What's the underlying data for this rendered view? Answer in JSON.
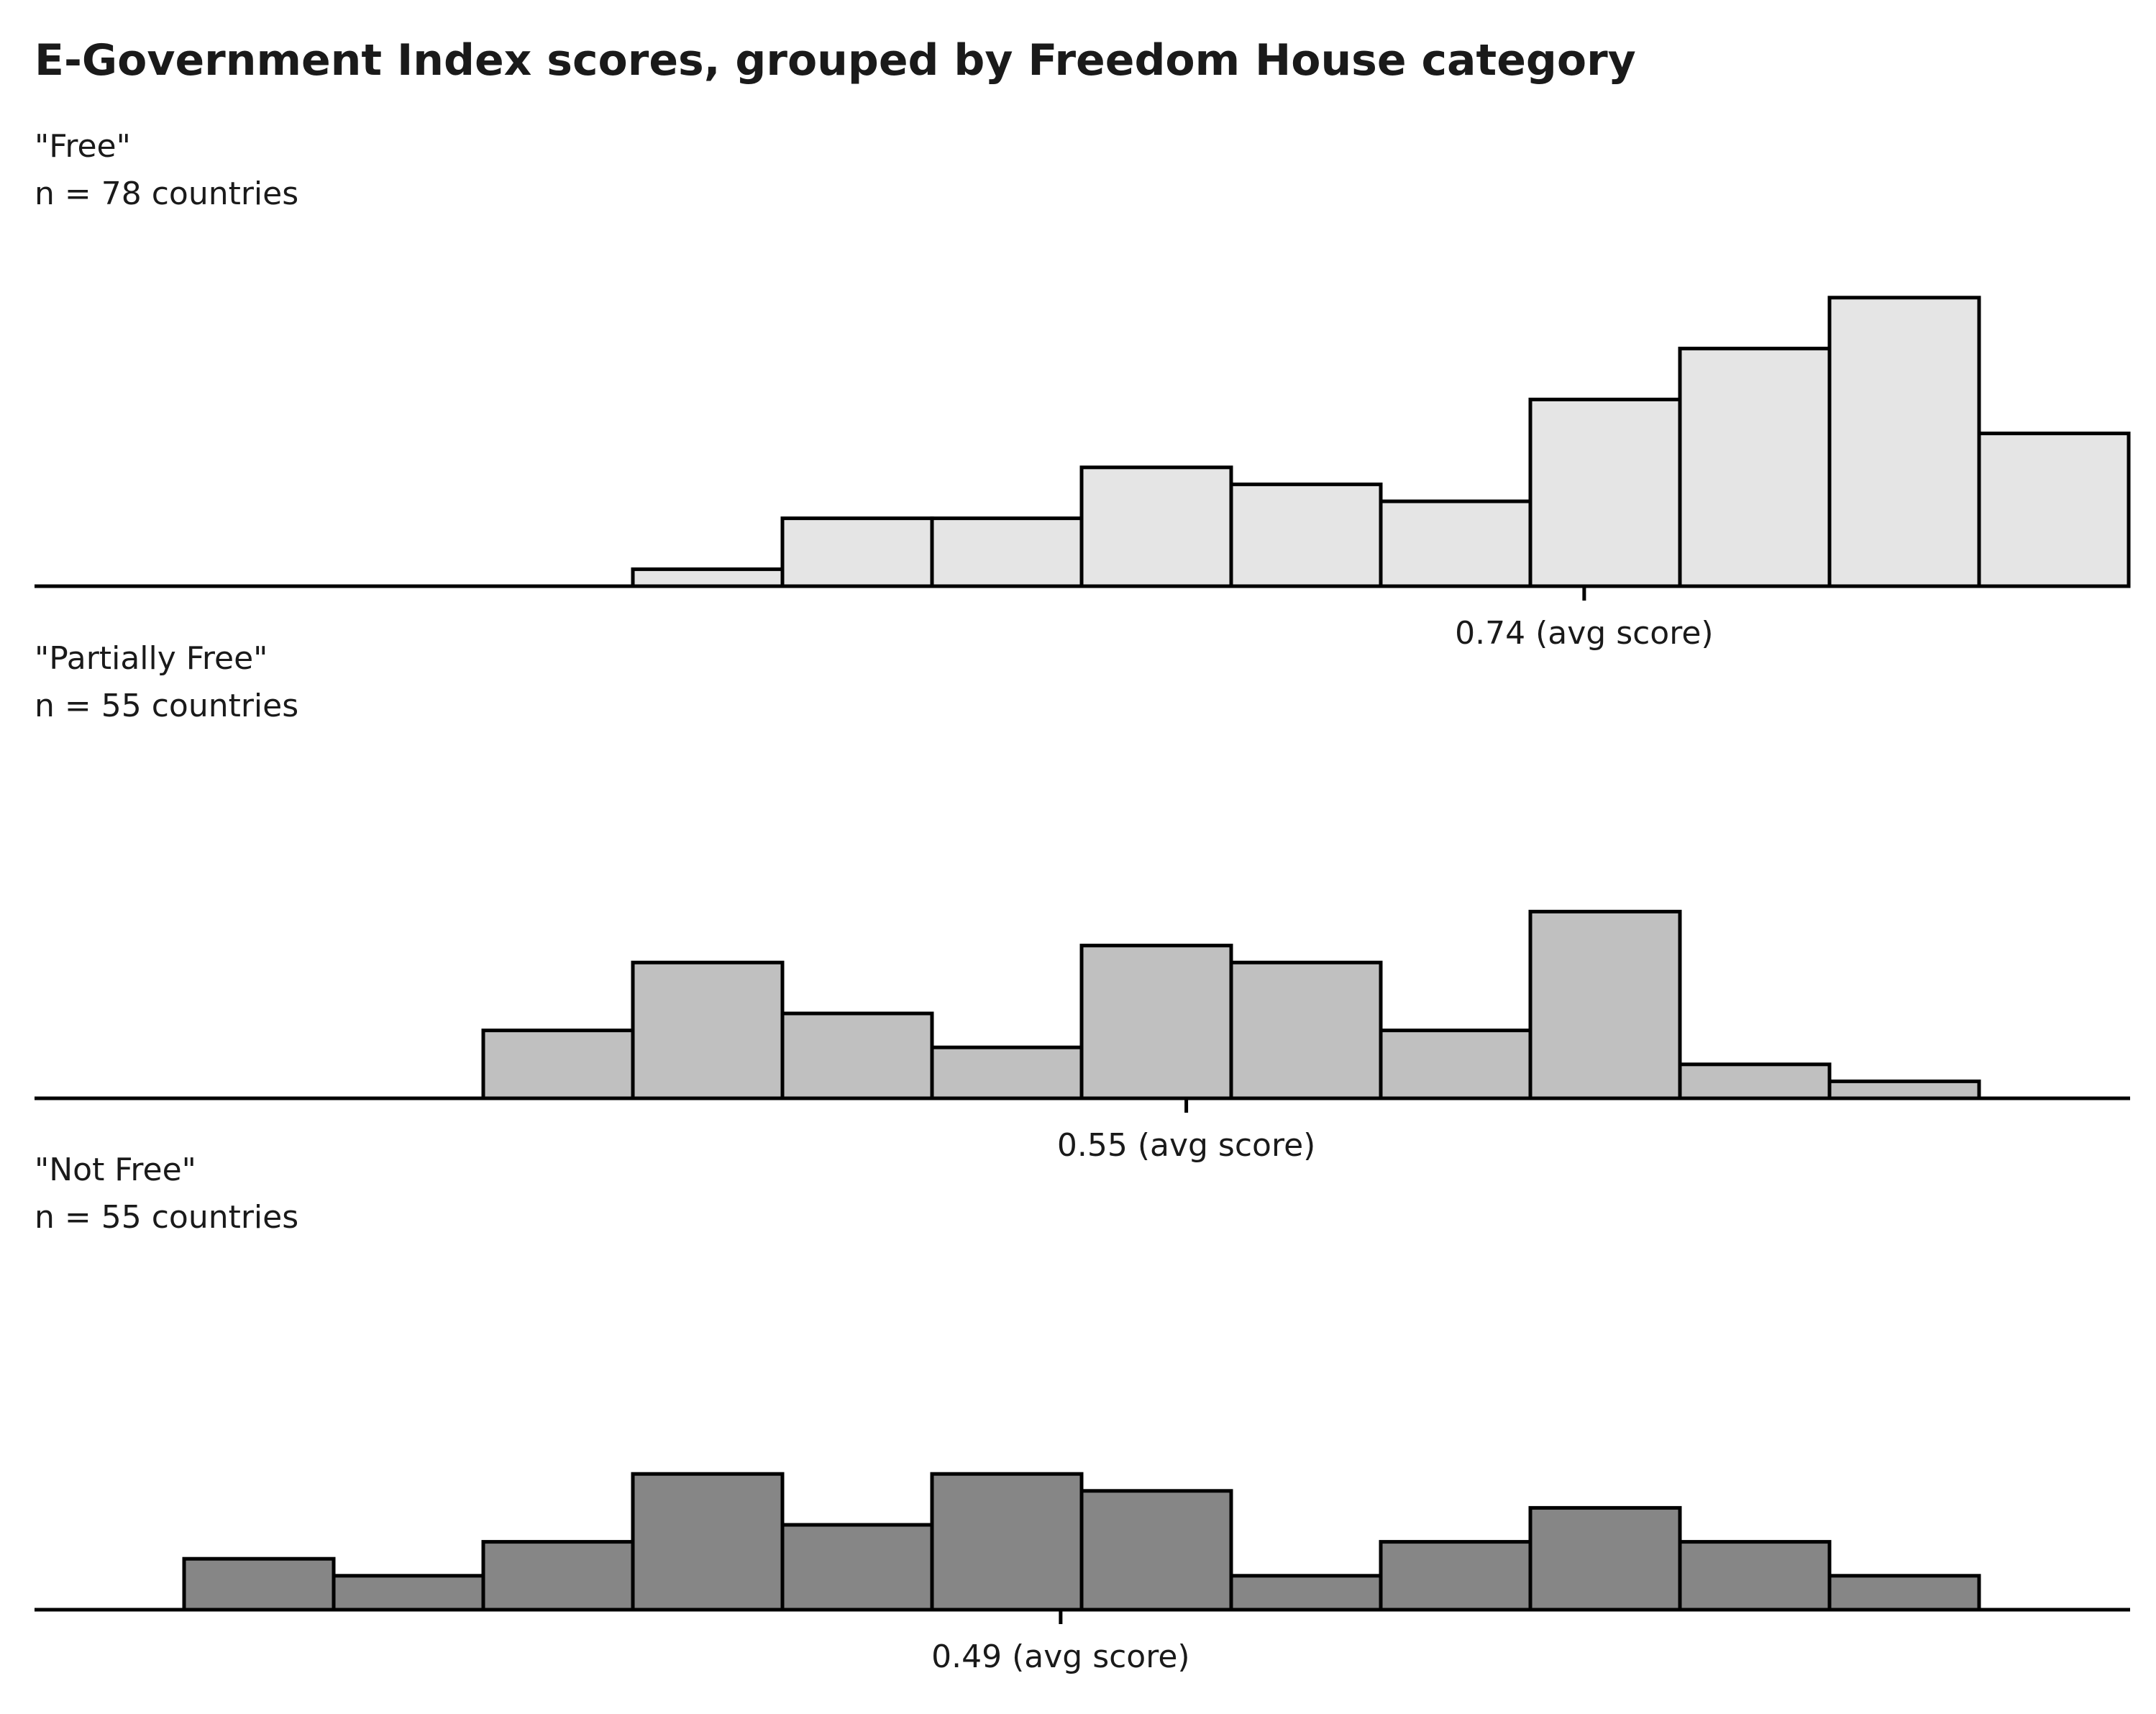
{
  "chart_data": {
    "type": "bar",
    "title": "E-Government Index scores, grouped by Freedom House category",
    "bin_count": 14,
    "x_domain": [
      0,
      1
    ],
    "stroke_color": "#000000",
    "panels": [
      {
        "name": "\"Free\"",
        "count_label": "n = 78 countries",
        "fill": "#e5e5e5",
        "values": [
          0,
          0,
          0,
          0,
          1,
          4,
          4,
          7,
          6,
          5,
          11,
          14,
          17,
          9
        ],
        "mean": 0.74,
        "mean_label": "0.74 (avg score)"
      },
      {
        "name": "\"Partially Free\"",
        "count_label": "n = 55 countries",
        "fill": "#c0c0c0",
        "values": [
          0,
          0,
          0,
          4,
          8,
          5,
          3,
          9,
          8,
          4,
          11,
          2,
          1,
          0
        ],
        "mean": 0.55,
        "mean_label": "0.55 (avg score)"
      },
      {
        "name": "\"Not Free\"",
        "count_label": "n = 55 countries",
        "fill": "#868686",
        "values": [
          0,
          3,
          2,
          4,
          8,
          5,
          8,
          7,
          2,
          4,
          6,
          4,
          2,
          0
        ],
        "mean": 0.49,
        "mean_label": "0.49 (avg score)"
      }
    ]
  }
}
